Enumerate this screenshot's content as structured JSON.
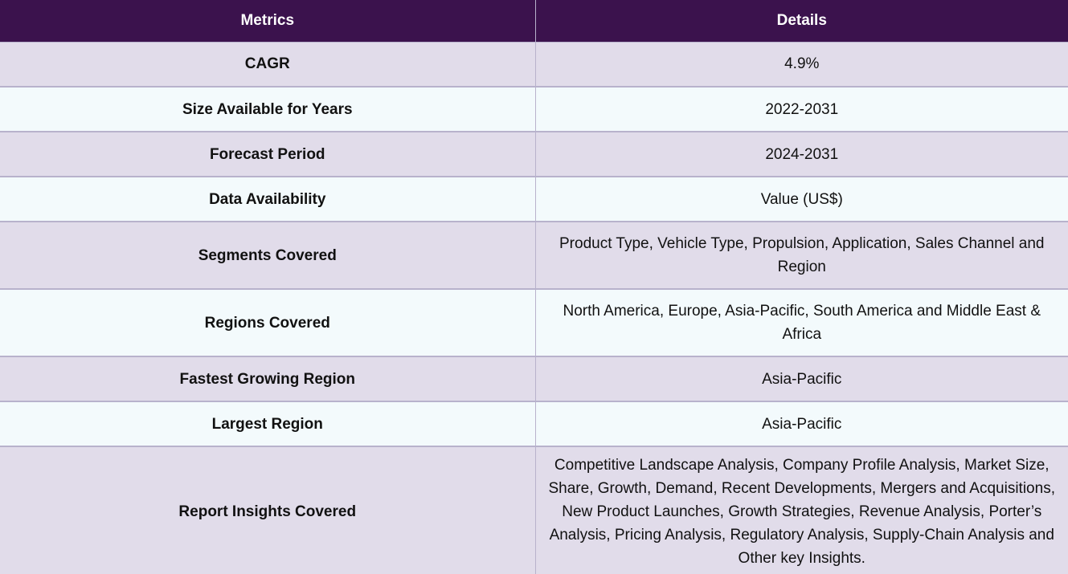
{
  "table": {
    "headers": [
      "Metrics",
      "Details"
    ],
    "rows": [
      {
        "metric": "CAGR",
        "details": "4.9%"
      },
      {
        "metric": "Size Available for Years",
        "details": "2022-2031"
      },
      {
        "metric": "Forecast Period",
        "details": "2024-2031"
      },
      {
        "metric": "Data Availability",
        "details": "Value (US$)"
      },
      {
        "metric": "Segments Covered",
        "details": "Product Type, Vehicle Type, Propulsion, Application, Sales Channel and Region"
      },
      {
        "metric": "Regions Covered",
        "details": "North America, Europe, Asia-Pacific, South America and Middle East & Africa"
      },
      {
        "metric": "Fastest Growing Region",
        "details": "Asia-Pacific"
      },
      {
        "metric": "Largest Region",
        "details": "Asia-Pacific"
      },
      {
        "metric": "Report Insights Covered",
        "details": "Competitive Landscape Analysis, Company Profile Analysis, Market Size, Share, Growth, Demand, Recent Developments, Mergers and Acquisitions, New Product Launches, Growth Strategies, Revenue Analysis, Porter’s Analysis, Pricing Analysis, Regulatory Analysis, Supply-Chain Analysis and Other key Insights."
      }
    ]
  },
  "colors": {
    "header_bg": "#3b124d",
    "row_odd_bg": "#e1dcea",
    "row_even_bg": "#f3fafc",
    "border": "#b8b2cc"
  }
}
